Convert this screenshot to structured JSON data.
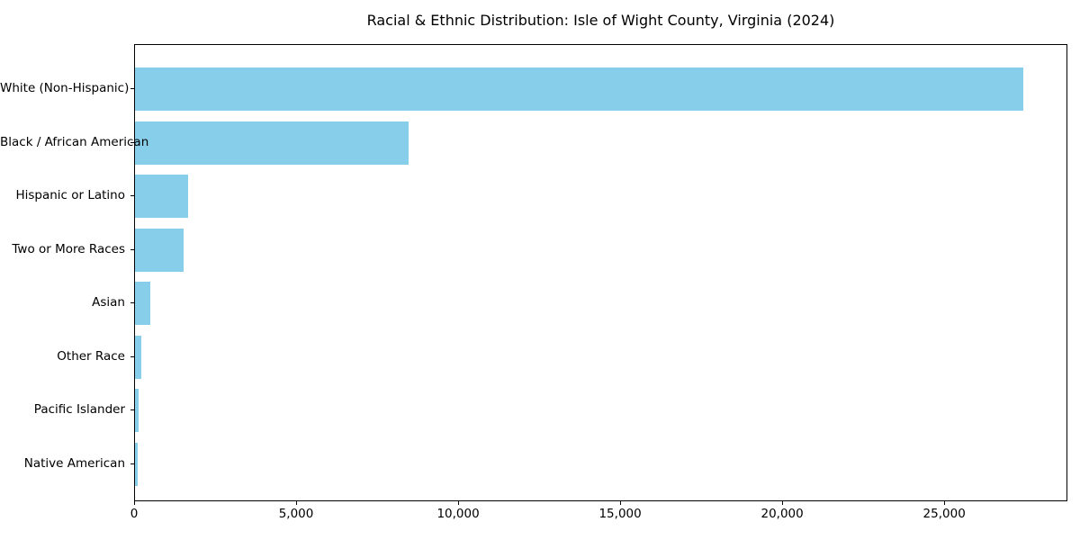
{
  "title": "Racial & Ethnic Distribution: Isle of Wight County, Virginia (2024)",
  "colors": {
    "bar": "#87CEEB",
    "axis": "#000000",
    "background": "#FFFFFF",
    "text": "#000000"
  },
  "chart_data": {
    "type": "bar",
    "orientation": "horizontal",
    "title": "Racial & Ethnic Distribution: Isle of Wight County, Virginia (2024)",
    "categories": [
      "White (Non-Hispanic)",
      "Black / African American",
      "Hispanic or Latino",
      "Two or More Races",
      "Asian",
      "Other Race",
      "Pacific Islander",
      "Native American"
    ],
    "values": [
      27400,
      8450,
      1650,
      1500,
      470,
      185,
      115,
      85
    ],
    "xlabel": "",
    "ylabel": "",
    "xlim": [
      0,
      28800
    ],
    "xticks": {
      "values": [
        0,
        5000,
        10000,
        15000,
        20000,
        25000
      ],
      "labels": [
        "0",
        "5,000",
        "10,000",
        "15,000",
        "20,000",
        "25,000"
      ]
    },
    "grid": false,
    "legend": null,
    "bar_color": "#87CEEB",
    "sort": "descending"
  }
}
